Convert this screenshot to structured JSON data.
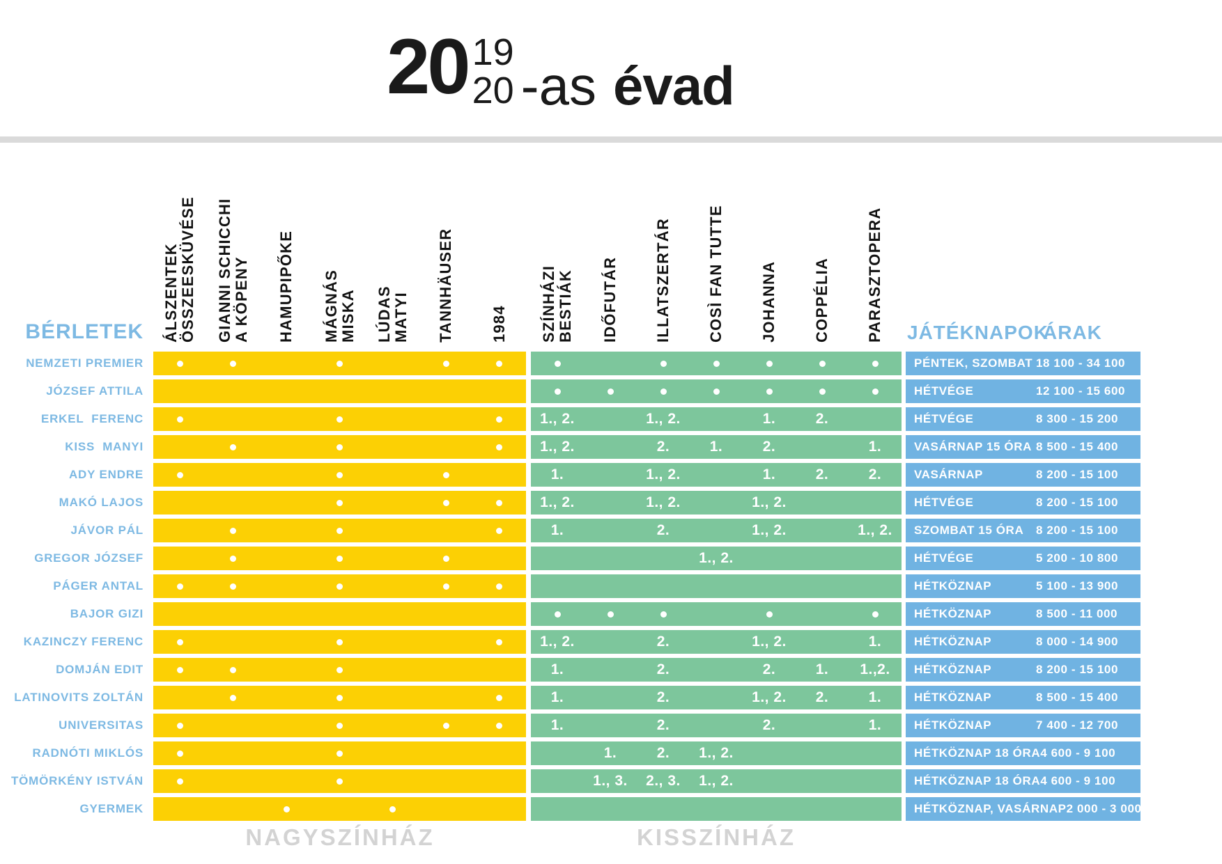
{
  "title": {
    "prefix": "20",
    "fraction_top": "19",
    "fraction_bottom": "20",
    "suffix": "-as",
    "word": "évad"
  },
  "labels": {
    "berletek": "BÉRLETEK",
    "jateknapok": "JÁTÉKNAPOK",
    "arak": "ÁRAK",
    "nagyszinhaz": "NAGYSZÍNHÁZ",
    "kisszinhaz": "KISSZÍNHÁZ"
  },
  "colors": {
    "nagyszinhaz_yellow": "#fcd004",
    "kisszinhaz_green": "#7dc69c",
    "blue_band": "#70b3e2",
    "label_blue": "#7db9e3",
    "divider_gray": "#dadada",
    "footer_gray": "#d3d3d3",
    "cell_text_white": "#ffffff",
    "title_black": "#1a1a1a"
  },
  "nagyszinhaz_shows": [
    {
      "lines": [
        "ÁLSZENTEK",
        "ÖSSZEESKÜVÉSE"
      ]
    },
    {
      "lines": [
        "GIANNI SCHICCHI",
        "A KÖPENY"
      ]
    },
    {
      "lines": [
        "HAMUPIPŐKE"
      ]
    },
    {
      "lines": [
        "MÁGNÁS",
        "MISKA"
      ]
    },
    {
      "lines": [
        "LÚDAS",
        "MATYI"
      ]
    },
    {
      "lines": [
        "TANNHÄUSER"
      ]
    },
    {
      "lines": [
        "1984"
      ]
    }
  ],
  "kisszinhaz_shows": [
    {
      "lines": [
        "SZÍNHÁZI",
        "BESTIÁK"
      ]
    },
    {
      "lines": [
        "IDŐFUTÁR"
      ]
    },
    {
      "lines": [
        "ILLATSZERTÁR"
      ]
    },
    {
      "lines": [
        "COSÌ FAN TUTTE"
      ]
    },
    {
      "lines": [
        "JOHANNA"
      ]
    },
    {
      "lines": [
        "COPPÉLIA"
      ]
    },
    {
      "lines": [
        "PARASZTOPERA"
      ]
    }
  ],
  "rows": [
    {
      "name": "NEMZETI PREMIER",
      "nagyszinhaz": [
        "dot",
        "dot",
        "",
        "dot",
        "",
        "dot",
        "dot"
      ],
      "kisszinhaz": [
        "dot",
        "",
        "dot",
        "dot",
        "dot",
        "dot",
        "dot"
      ],
      "kisszinhaz_span": "",
      "days": "PÉNTEK, SZOMBAT",
      "prices": "18 100 - 34 100"
    },
    {
      "name": "JÓZSEF ATTILA",
      "nagyszinhaz": [
        "",
        "",
        "",
        "",
        "",
        "",
        ""
      ],
      "kisszinhaz": [
        "dot",
        "dot",
        "dot",
        "dot",
        "dot",
        "dot",
        "dot"
      ],
      "kisszinhaz_span": "",
      "days": "HÉTVÉGE",
      "prices": "12 100 - 15 600"
    },
    {
      "name": "ERKEL  FERENC",
      "nagyszinhaz": [
        "dot",
        "",
        "",
        "dot",
        "",
        "",
        "dot"
      ],
      "kisszinhaz": [
        "1., 2.",
        "",
        "1., 2.",
        "",
        "1.",
        "2.",
        ""
      ],
      "kisszinhaz_span": "",
      "days": "HÉTVÉGE",
      "prices": "8 300 - 15 200"
    },
    {
      "name": "KISS  MANYI",
      "nagyszinhaz": [
        "",
        "dot",
        "",
        "dot",
        "",
        "",
        "dot"
      ],
      "kisszinhaz": [
        "1., 2.",
        "",
        "2.",
        "1.",
        "2.",
        "",
        "1."
      ],
      "kisszinhaz_span": "",
      "days": "VASÁRNAP 15 ÓRA",
      "prices": "8 500 - 15 400"
    },
    {
      "name": "ADY ENDRE",
      "nagyszinhaz": [
        "dot",
        "",
        "",
        "dot",
        "",
        "dot",
        ""
      ],
      "kisszinhaz": [
        "1.",
        "",
        "1., 2.",
        "",
        "1.",
        "2.",
        "2."
      ],
      "kisszinhaz_span": "",
      "days": "VASÁRNAP",
      "prices": "8 200 - 15 100"
    },
    {
      "name": "MAKÓ LAJOS",
      "nagyszinhaz": [
        "",
        "",
        "",
        "dot",
        "",
        "dot",
        "dot"
      ],
      "kisszinhaz": [
        "1., 2.",
        "",
        "1., 2.",
        "",
        "1., 2.",
        "",
        ""
      ],
      "kisszinhaz_span": "",
      "days": "HÉTVÉGE",
      "prices": "8 200 - 15 100"
    },
    {
      "name": "JÁVOR PÁL",
      "nagyszinhaz": [
        "",
        "dot",
        "",
        "dot",
        "",
        "",
        "dot"
      ],
      "kisszinhaz": [
        "1.",
        "",
        "2.",
        "",
        "1., 2.",
        "",
        "1., 2."
      ],
      "kisszinhaz_span": "",
      "days": "SZOMBAT 15 ÓRA",
      "prices": "8 200 - 15 100"
    },
    {
      "name": "GREGOR JÓZSEF",
      "nagyszinhaz": [
        "",
        "dot",
        "",
        "dot",
        "",
        "dot",
        ""
      ],
      "kisszinhaz": [
        "",
        "",
        "",
        "",
        "",
        "",
        ""
      ],
      "kisszinhaz_span": "1., 2.",
      "days": "HÉTVÉGE",
      "prices": "5 200 - 10 800"
    },
    {
      "name": "PÁGER ANTAL",
      "nagyszinhaz": [
        "dot",
        "dot",
        "",
        "dot",
        "",
        "dot",
        "dot"
      ],
      "kisszinhaz": [
        "",
        "",
        "",
        "",
        "",
        "",
        ""
      ],
      "kisszinhaz_span": "",
      "days": "HÉTKÖZNAP",
      "prices": "5 100 - 13 900"
    },
    {
      "name": "BAJOR GIZI",
      "nagyszinhaz": [
        "",
        "",
        "",
        "",
        "",
        "",
        ""
      ],
      "kisszinhaz": [
        "dot",
        "dot",
        "dot",
        "",
        "dot",
        "",
        "dot"
      ],
      "kisszinhaz_span": "",
      "days": "HÉTKÖZNAP",
      "prices": "8 500 - 11 000"
    },
    {
      "name": "KAZINCZY FERENC",
      "nagyszinhaz": [
        "dot",
        "",
        "",
        "dot",
        "",
        "",
        "dot"
      ],
      "kisszinhaz": [
        "1., 2.",
        "",
        "2.",
        "",
        "1., 2.",
        "",
        "1."
      ],
      "kisszinhaz_span": "",
      "days": "HÉTKÖZNAP",
      "prices": "8 000 - 14 900"
    },
    {
      "name": "DOMJÁN EDIT",
      "nagyszinhaz": [
        "dot",
        "dot",
        "",
        "dot",
        "",
        "",
        ""
      ],
      "kisszinhaz": [
        "1.",
        "",
        "2.",
        "",
        "2.",
        "1.",
        "1.,2."
      ],
      "kisszinhaz_span": "",
      "days": "HÉTKÖZNAP",
      "prices": "8 200 - 15 100"
    },
    {
      "name": "LATINOVITS ZOLTÁN",
      "nagyszinhaz": [
        "",
        "dot",
        "",
        "dot",
        "",
        "",
        "dot"
      ],
      "kisszinhaz": [
        "1.",
        "",
        "2.",
        "",
        "1., 2.",
        "2.",
        "1."
      ],
      "kisszinhaz_span": "",
      "days": "HÉTKÖZNAP",
      "prices": "8 500 - 15 400"
    },
    {
      "name": "UNIVERSITAS",
      "nagyszinhaz": [
        "dot",
        "",
        "",
        "dot",
        "",
        "dot",
        "dot"
      ],
      "kisszinhaz": [
        "1.",
        "",
        "2.",
        "",
        "2.",
        "",
        "1."
      ],
      "kisszinhaz_span": "",
      "days": "HÉTKÖZNAP",
      "prices": "7 400 - 12 700"
    },
    {
      "name": "RADNÓTI MIKLÓS",
      "nagyszinhaz": [
        "dot",
        "",
        "",
        "dot",
        "",
        "",
        ""
      ],
      "kisszinhaz": [
        "",
        "1.",
        "2.",
        "1., 2.",
        "",
        "",
        ""
      ],
      "kisszinhaz_span": "",
      "days": "HÉTKÖZNAP 18 ÓRA",
      "prices": "4 600 - 9 100"
    },
    {
      "name": "TÖMÖRKÉNY ISTVÁN",
      "nagyszinhaz": [
        "dot",
        "",
        "",
        "dot",
        "",
        "",
        ""
      ],
      "kisszinhaz": [
        "",
        "1., 3.",
        "2., 3.",
        "1., 2.",
        "",
        "",
        ""
      ],
      "kisszinhaz_span": "",
      "days": "HÉTKÖZNAP 18 ÓRA",
      "prices": "4 600 - 9 100"
    },
    {
      "name": "GYERMEK",
      "nagyszinhaz": [
        "",
        "",
        "dot",
        "",
        "dot",
        "",
        ""
      ],
      "kisszinhaz": [
        "",
        "",
        "",
        "",
        "",
        "",
        ""
      ],
      "kisszinhaz_span": "",
      "days": "HÉTKÖZNAP, VASÁRNAP",
      "prices": "2 000 - 3 000"
    }
  ],
  "layout_hints": {
    "row_count": 17,
    "columns_per_section": 7
  }
}
